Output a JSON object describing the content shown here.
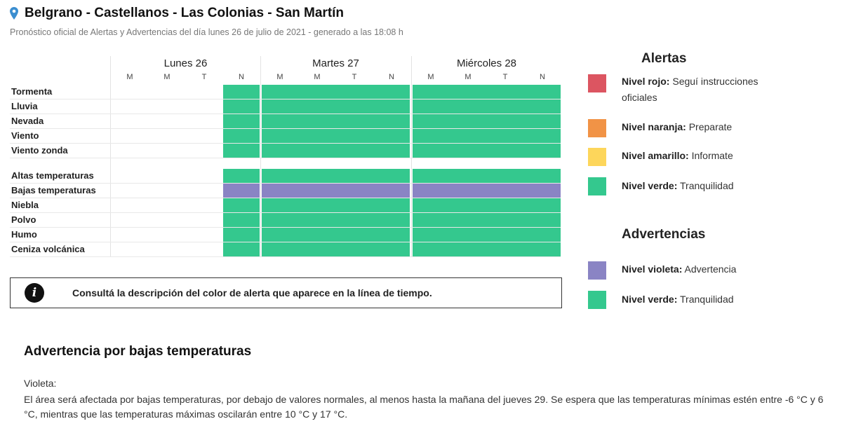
{
  "header": {
    "title": "Belgrano - Castellanos - Las Colonias - San Martín",
    "subtitle": "Pronóstico oficial de Alertas y Advertencias del día lunes 26 de julio de 2021 - generado a las 18:08 h",
    "pin_icon": "location-pin-icon",
    "pin_color": "#3b8ed0"
  },
  "timeline": {
    "days": [
      "Lunes 26",
      "Martes 27",
      "Miércoles 28"
    ],
    "periods": [
      "M",
      "M",
      "T",
      "N"
    ],
    "rows": [
      {
        "label": "Tormenta",
        "levels": [
          "none",
          "none",
          "none",
          "verde",
          "verde",
          "verde",
          "verde",
          "verde",
          "verde",
          "verde",
          "verde",
          "verde"
        ]
      },
      {
        "label": "Lluvia",
        "levels": [
          "none",
          "none",
          "none",
          "verde",
          "verde",
          "verde",
          "verde",
          "verde",
          "verde",
          "verde",
          "verde",
          "verde"
        ]
      },
      {
        "label": "Nevada",
        "levels": [
          "none",
          "none",
          "none",
          "verde",
          "verde",
          "verde",
          "verde",
          "verde",
          "verde",
          "verde",
          "verde",
          "verde"
        ]
      },
      {
        "label": "Viento",
        "levels": [
          "none",
          "none",
          "none",
          "verde",
          "verde",
          "verde",
          "verde",
          "verde",
          "verde",
          "verde",
          "verde",
          "verde"
        ]
      },
      {
        "label": "Viento zonda",
        "levels": [
          "none",
          "none",
          "none",
          "verde",
          "verde",
          "verde",
          "verde",
          "verde",
          "verde",
          "verde",
          "verde",
          "verde"
        ]
      },
      {
        "label": "Altas temperaturas",
        "levels": [
          "none",
          "none",
          "none",
          "verde",
          "verde",
          "verde",
          "verde",
          "verde",
          "verde",
          "verde",
          "verde",
          "verde"
        ]
      },
      {
        "label": "Bajas temperaturas",
        "levels": [
          "none",
          "none",
          "none",
          "violeta",
          "violeta",
          "violeta",
          "violeta",
          "violeta",
          "violeta",
          "violeta",
          "violeta",
          "violeta"
        ]
      },
      {
        "label": "Niebla",
        "levels": [
          "none",
          "none",
          "none",
          "verde",
          "verde",
          "verde",
          "verde",
          "verde",
          "verde",
          "verde",
          "verde",
          "verde"
        ]
      },
      {
        "label": "Polvo",
        "levels": [
          "none",
          "none",
          "none",
          "verde",
          "verde",
          "verde",
          "verde",
          "verde",
          "verde",
          "verde",
          "verde",
          "verde"
        ]
      },
      {
        "label": "Humo",
        "levels": [
          "none",
          "none",
          "none",
          "verde",
          "verde",
          "verde",
          "verde",
          "verde",
          "verde",
          "verde",
          "verde",
          "verde"
        ]
      },
      {
        "label": "Ceniza volcánica",
        "levels": [
          "none",
          "none",
          "none",
          "verde",
          "verde",
          "verde",
          "verde",
          "verde",
          "verde",
          "verde",
          "verde",
          "verde"
        ]
      }
    ]
  },
  "colors": {
    "rojo": "#dc5561",
    "naranja": "#f19346",
    "amarillo": "#fdd65b",
    "verde": "#34c88e",
    "violeta": "#8a84c4"
  },
  "info": {
    "icon": "info-icon",
    "text": "Consultá la descripción del color de alerta que aparece en la línea de tiempo."
  },
  "legend": {
    "alertas_title": "Alertas",
    "alertas": [
      {
        "level": "rojo",
        "bold": "Nivel rojo:",
        "text": " Seguí instrucciones oficiales"
      },
      {
        "level": "naranja",
        "bold": "Nivel naranja:",
        "text": " Preparate"
      },
      {
        "level": "amarillo",
        "bold": "Nivel amarillo:",
        "text": " Informate"
      },
      {
        "level": "verde",
        "bold": "Nivel verde:",
        "text": " Tranquilidad"
      }
    ],
    "advertencias_title": "Advertencias",
    "advertencias": [
      {
        "level": "violeta",
        "bold": "Nivel violeta:",
        "text": " Advertencia"
      },
      {
        "level": "verde",
        "bold": "Nivel verde:",
        "text": " Tranquilidad"
      }
    ]
  },
  "advisory": {
    "title": "Advertencia por bajas temperaturas",
    "level": "Violeta:",
    "body": "El área será afectada por bajas temperaturas, por debajo de valores normales, al menos hasta la mañana del jueves 29. Se espera que las temperaturas mínimas estén entre -6 °C y 6 °C, mientras que las temperaturas máximas oscilarán entre 10 °C y 17 °C."
  }
}
